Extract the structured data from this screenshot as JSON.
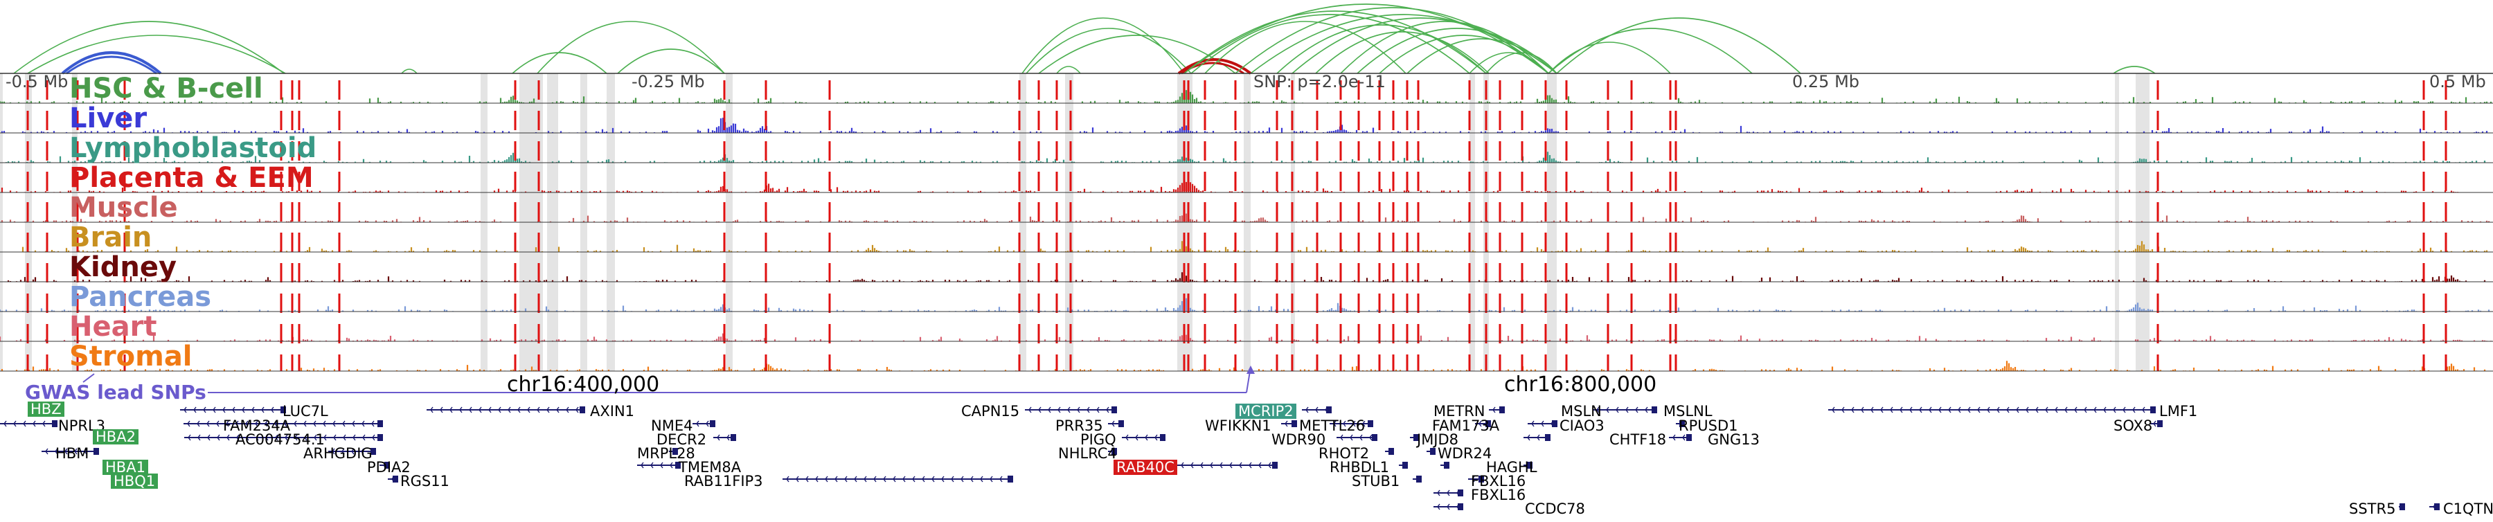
{
  "axis": {
    "ticks": [
      "-0.5 Mb",
      "-0.25 Mb",
      "0.25 Mb",
      "0.5 Mb"
    ],
    "snp_label": "SNP: p=2.0e-11",
    "chrom_labels": [
      "chr16:400,000",
      "chr16:800,000"
    ]
  },
  "gwas_label": "GWAS lead SNPs",
  "tracks": [
    {
      "name": "HSC & B-cell",
      "color": "#4a9a4a"
    },
    {
      "name": "Liver",
      "color": "#3a3ad6"
    },
    {
      "name": "Lymphoblastoid",
      "color": "#3a9a86"
    },
    {
      "name": "Placenta & EEM",
      "color": "#d61a1a"
    },
    {
      "name": "Muscle",
      "color": "#c86060"
    },
    {
      "name": "Brain",
      "color": "#c89020"
    },
    {
      "name": "Kidney",
      "color": "#6a0a0a"
    },
    {
      "name": "Pancreas",
      "color": "#7a9ad8"
    },
    {
      "name": "Heart",
      "color": "#d86070"
    },
    {
      "name": "Stromal",
      "color": "#f07a14"
    }
  ],
  "genes": [
    {
      "name": "HBZ",
      "highlight": "#3aa050"
    },
    {
      "name": "NPRL3"
    },
    {
      "name": "HBA2",
      "highlight": "#3aa050"
    },
    {
      "name": "HBM"
    },
    {
      "name": "HBA1",
      "highlight": "#3aa050"
    },
    {
      "name": "HBQ1",
      "highlight": "#3aa050"
    },
    {
      "name": "LUC7L"
    },
    {
      "name": "FAM234A"
    },
    {
      "name": "AC004754.1"
    },
    {
      "name": "ARHGDIG"
    },
    {
      "name": "PDIA2"
    },
    {
      "name": "RGS11"
    },
    {
      "name": "AXIN1"
    },
    {
      "name": "NME4"
    },
    {
      "name": "DECR2"
    },
    {
      "name": "MRPL28"
    },
    {
      "name": "TMEM8A"
    },
    {
      "name": "RAB11FIP3"
    },
    {
      "name": "CAPN15"
    },
    {
      "name": "PRR35"
    },
    {
      "name": "PIGQ"
    },
    {
      "name": "NHLRC4"
    },
    {
      "name": "RAB40C",
      "highlight": "#d61a1a"
    },
    {
      "name": "MCRIP2",
      "highlight": "#3a9a86"
    },
    {
      "name": "WFIKKN1"
    },
    {
      "name": "METTL26"
    },
    {
      "name": "WDR90"
    },
    {
      "name": "RHOT2"
    },
    {
      "name": "RHBDL1"
    },
    {
      "name": "STUB1"
    },
    {
      "name": "METRN"
    },
    {
      "name": "FAM173A"
    },
    {
      "name": "JMJD8"
    },
    {
      "name": "WDR24"
    },
    {
      "name": "HAGHL"
    },
    {
      "name": "FBXL16"
    },
    {
      "name": "FBXL16"
    },
    {
      "name": "CCDC78"
    },
    {
      "name": "MSLN"
    },
    {
      "name": "CIAO3"
    },
    {
      "name": "MSLNL"
    },
    {
      "name": "RPUSD1"
    },
    {
      "name": "CHTF18"
    },
    {
      "name": "GNG13"
    },
    {
      "name": "LMF1"
    },
    {
      "name": "SOX8"
    },
    {
      "name": "SSTR5"
    },
    {
      "name": "C1QTN"
    }
  ],
  "colors": {
    "highlight_region": "#d8d8d8",
    "red_marks": "#e01010",
    "gwas": "#6a5acd",
    "loops": "#4caf50",
    "snp_loops": "#c01010",
    "hbz_loop": "#3a5ad0",
    "gene_blue": "#1a1a6e"
  }
}
